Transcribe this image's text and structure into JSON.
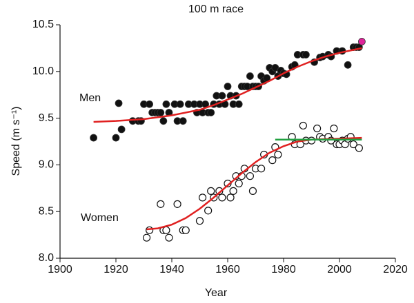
{
  "chart_data": {
    "type": "scatter",
    "title": "100 m race",
    "xlabel": "Year",
    "ylabel": "Speed (m s⁻¹)",
    "xlim": [
      1900,
      2020
    ],
    "xticks": [
      1900,
      1920,
      1940,
      1960,
      1980,
      2000,
      2020
    ],
    "ylim": [
      8,
      10.5
    ],
    "yticks": [
      {
        "value": 8,
        "label": "8.0"
      },
      8.5,
      {
        "value": 9,
        "label": "9.0"
      },
      9.5,
      {
        "value": 10,
        "label": "10.0"
      },
      10.5
    ],
    "series": [
      {
        "name": "Men",
        "color": "#111111",
        "marker": "filled",
        "x": [
          1912,
          1920,
          1921,
          1922,
          1926,
          1928,
          1929,
          1930,
          1932,
          1933,
          1934,
          1935,
          1936,
          1937,
          1938,
          1939,
          1941,
          1942,
          1943,
          1944,
          1946,
          1948,
          1949,
          1950,
          1951,
          1952,
          1953,
          1954,
          1955,
          1956,
          1957,
          1958,
          1959,
          1960,
          1961,
          1962,
          1963,
          1964,
          1965,
          1966,
          1967,
          1968,
          1969,
          1970,
          1971,
          1972,
          1973,
          1974,
          1975,
          1976,
          1977,
          1978,
          1979,
          1980,
          1981,
          1983,
          1984,
          1985,
          1987,
          1988,
          1991,
          1993,
          1994,
          1996,
          1997,
          1999,
          2001,
          2003,
          2005,
          2006,
          2007
        ],
        "values": [
          9.29,
          9.29,
          9.66,
          9.38,
          9.47,
          9.47,
          9.47,
          9.65,
          9.65,
          9.56,
          9.56,
          9.56,
          9.56,
          9.47,
          9.65,
          9.56,
          9.65,
          9.47,
          9.65,
          9.47,
          9.65,
          9.65,
          9.56,
          9.65,
          9.56,
          9.65,
          9.56,
          9.56,
          9.65,
          9.74,
          9.65,
          9.74,
          9.65,
          9.84,
          9.74,
          9.65,
          9.74,
          9.65,
          9.84,
          9.84,
          9.84,
          9.95,
          9.84,
          9.84,
          9.84,
          9.95,
          9.9,
          9.93,
          10.04,
          10,
          10.04,
          9.95,
          10.01,
          9.98,
          9.97,
          10.05,
          10.07,
          10.18,
          10.18,
          10.18,
          10.1,
          10.15,
          10.16,
          10.18,
          10.16,
          10.22,
          10.22,
          10.07,
          10.26,
          10.26,
          10.26
        ]
      },
      {
        "color": "#e0249a",
        "marker": "filled",
        "x": [
          2008
        ],
        "values": [
          10.32
        ]
      },
      {
        "name": "Women",
        "color": "#111111",
        "marker": "open",
        "x": [
          1931,
          1932,
          1936,
          1937,
          1938,
          1939,
          1942,
          1944,
          1945,
          1950,
          1951,
          1953,
          1954,
          1955,
          1957,
          1958,
          1960,
          1961,
          1962,
          1963,
          1964,
          1965,
          1966,
          1968,
          1969,
          1970,
          1972,
          1973,
          1976,
          1977,
          1978,
          1983,
          1984,
          1986,
          1987,
          1988,
          1990,
          1992,
          1993,
          1994,
          1996,
          1997,
          1998,
          1999,
          2000,
          2001,
          2002,
          2003,
          2004,
          2005,
          2007
        ],
        "values": [
          8.22,
          8.3,
          8.58,
          8.3,
          8.3,
          8.22,
          8.58,
          8.3,
          8.3,
          8.4,
          8.65,
          8.51,
          8.72,
          8.65,
          8.72,
          8.65,
          8.8,
          8.65,
          8.72,
          8.88,
          8.8,
          8.88,
          8.96,
          8.88,
          8.72,
          8.96,
          8.96,
          9.11,
          9.05,
          9.19,
          9.11,
          9.3,
          9.22,
          9.22,
          9.42,
          9.26,
          9.26,
          9.39,
          9.3,
          9.28,
          9.3,
          9.26,
          9.39,
          9.22,
          9.22,
          9.26,
          9.22,
          9.28,
          9.3,
          9.22,
          9.18
        ]
      },
      {
        "color": "#e02020",
        "marker": "line",
        "x": [
          1912,
          1920,
          1930,
          1940,
          1950,
          1955,
          1960,
          1965,
          1970,
          1975,
          1980,
          1985,
          1990,
          1995,
          2000,
          2008
        ],
        "values": [
          9.46,
          9.47,
          9.49,
          9.53,
          9.59,
          9.64,
          9.7,
          9.76,
          9.83,
          9.9,
          9.98,
          10.05,
          10.11,
          10.16,
          10.2,
          10.25
        ]
      },
      {
        "color": "#e02020",
        "marker": "line",
        "x": [
          1931,
          1935,
          1940,
          1945,
          1950,
          1955,
          1960,
          1965,
          1970,
          1975,
          1980,
          1985,
          1990,
          2000,
          2008
        ],
        "values": [
          8.31,
          8.32,
          8.36,
          8.43,
          8.53,
          8.65,
          8.78,
          8.91,
          9.03,
          9.13,
          9.2,
          9.25,
          9.27,
          9.28,
          9.29
        ]
      },
      {
        "color": "#22a040",
        "marker": "line",
        "x": [
          1977,
          2008
        ],
        "values": [
          9.27,
          9.27
        ]
      }
    ]
  }
}
